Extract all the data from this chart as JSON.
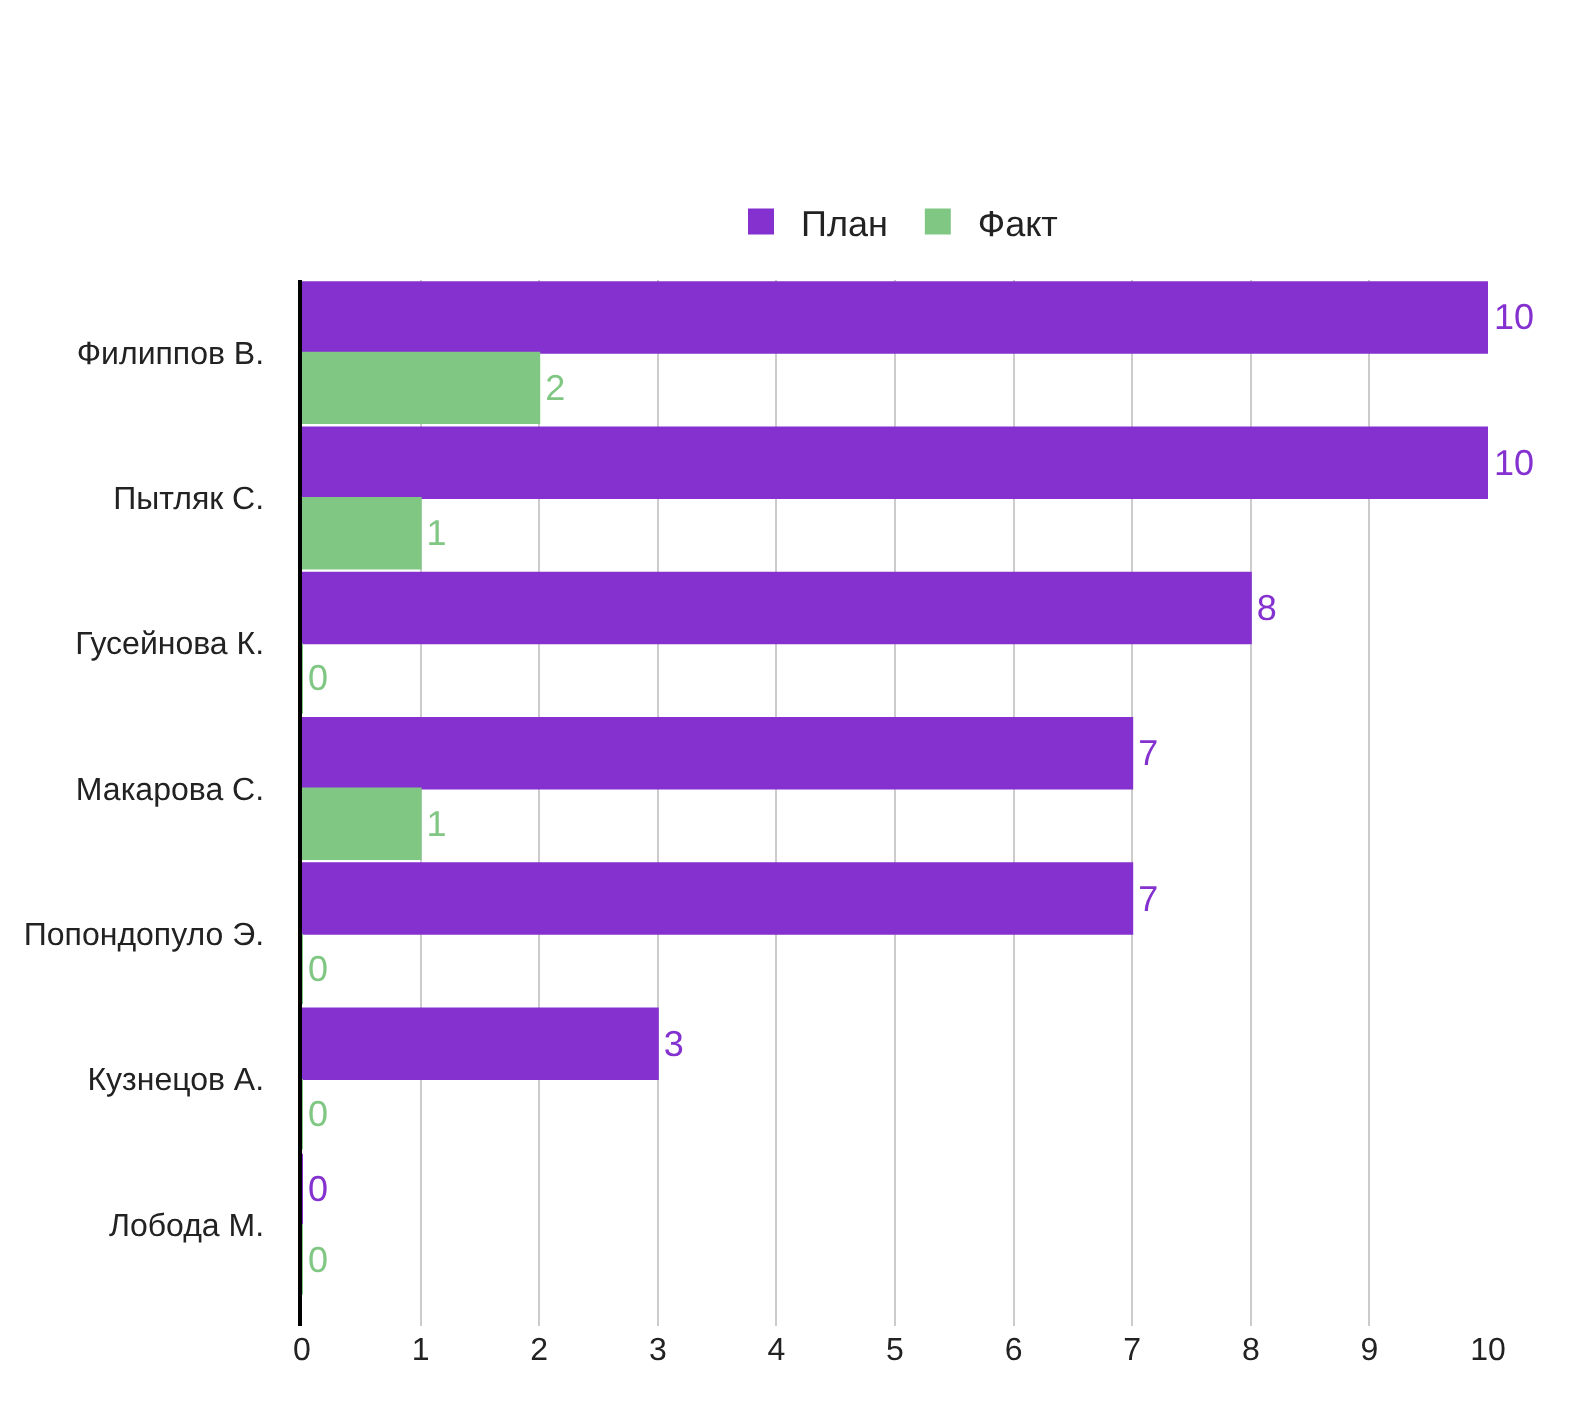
{
  "chart_data": {
    "type": "bar",
    "orientation": "horizontal",
    "categories": [
      "Филиппов В.",
      "Пытляк С.",
      "Гусейнова К.",
      "Макарова С.",
      "Попондопуло Э.",
      "Кузнецов А.",
      "Лобода М."
    ],
    "series": [
      {
        "name": "План",
        "color": "#8431d0",
        "values": [
          10,
          10,
          8,
          7,
          7,
          3,
          0
        ]
      },
      {
        "name": "Факт",
        "color": "#81c784",
        "values": [
          2,
          1,
          0,
          1,
          0,
          0,
          0
        ]
      }
    ],
    "xlim": [
      0,
      10
    ],
    "xticks": [
      0,
      1,
      2,
      3,
      4,
      5,
      6,
      7,
      8,
      9,
      10
    ],
    "grid": "x",
    "legend": "top",
    "data_labels": true
  }
}
